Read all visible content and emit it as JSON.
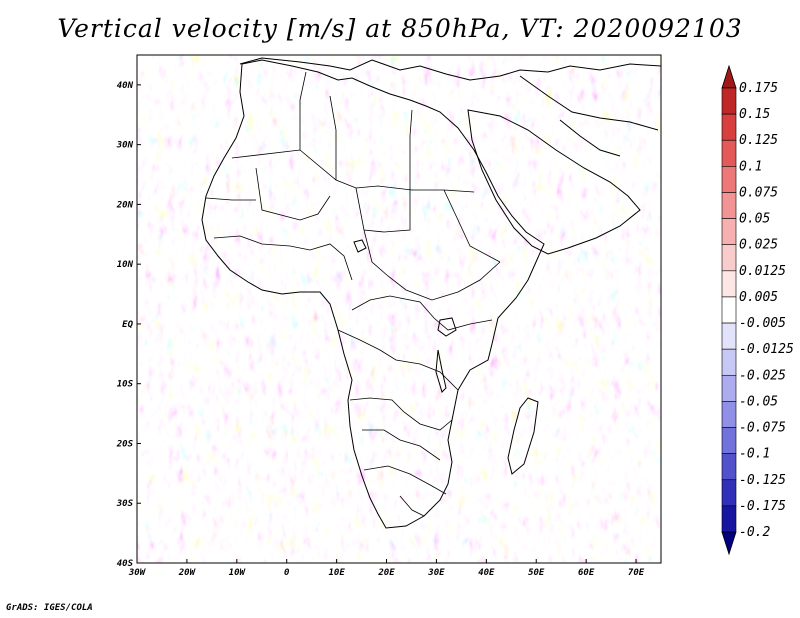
{
  "title": "Vertical velocity [m/s] at 850hPa, VT: 2020092103",
  "credit": "GrADS: IGES/COLA",
  "map": {
    "lon_range": [
      -30,
      75
    ],
    "lat_range": [
      -40,
      45
    ],
    "lon_ticks": [
      {
        "value": -30,
        "label": "30W"
      },
      {
        "value": -20,
        "label": "20W"
      },
      {
        "value": -10,
        "label": "10W"
      },
      {
        "value": 0,
        "label": "0"
      },
      {
        "value": 10,
        "label": "10E"
      },
      {
        "value": 20,
        "label": "20E"
      },
      {
        "value": 30,
        "label": "30E"
      },
      {
        "value": 40,
        "label": "40E"
      },
      {
        "value": 50,
        "label": "50E"
      },
      {
        "value": 60,
        "label": "60E"
      },
      {
        "value": 70,
        "label": "70E"
      }
    ],
    "lat_ticks": [
      {
        "value": 40,
        "label": "40N"
      },
      {
        "value": 30,
        "label": "30N"
      },
      {
        "value": 20,
        "label": "20N"
      },
      {
        "value": 10,
        "label": "10N"
      },
      {
        "value": 0,
        "label": "EQ"
      },
      {
        "value": -10,
        "label": "10S"
      },
      {
        "value": -20,
        "label": "20S"
      },
      {
        "value": -30,
        "label": "30S"
      },
      {
        "value": -40,
        "label": "40S"
      }
    ]
  },
  "colorbar": {
    "labels": [
      "0.175",
      "0.15",
      "0.125",
      "0.1",
      "0.075",
      "0.05",
      "0.025",
      "0.0125",
      "0.005",
      "-0.005",
      "-0.0125",
      "-0.025",
      "-0.05",
      "-0.075",
      "-0.1",
      "-0.125",
      "-0.175",
      "-0.2"
    ],
    "colors": [
      "#a01818",
      "#c02828",
      "#d84040",
      "#e45a5a",
      "#ec7878",
      "#f29494",
      "#f6b0b0",
      "#f9cccc",
      "#fce6e6",
      "#ffffff",
      "#e2e2fa",
      "#c8c8f4",
      "#acacee",
      "#9090e6",
      "#7272dc",
      "#5252cc",
      "#3030b8",
      "#1616a0",
      "#000080"
    ]
  }
}
